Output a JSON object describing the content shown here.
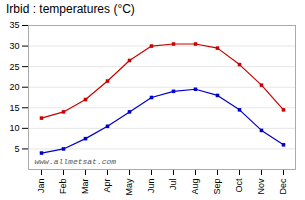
{
  "chart_data": {
    "type": "line",
    "title": "Irbid : temperatures (°C)",
    "categories": [
      "Jan",
      "Feb",
      "Mar",
      "Apr",
      "May",
      "Jun",
      "Jul",
      "Aug",
      "Sep",
      "Oct",
      "Nov",
      "Dec"
    ],
    "series": [
      {
        "color": "#cc0000",
        "marker": "square",
        "values": [
          12.5,
          14.0,
          17.0,
          21.5,
          26.5,
          30.0,
          30.5,
          30.5,
          29.5,
          25.5,
          20.5,
          14.5
        ]
      },
      {
        "color": "#0000cc",
        "marker": "square",
        "values": [
          4.0,
          5.0,
          7.5,
          10.5,
          14.0,
          17.5,
          19.0,
          19.5,
          18.0,
          14.5,
          9.5,
          6.0
        ]
      }
    ],
    "ylim": [
      0,
      35
    ],
    "yticks": [
      5,
      10,
      15,
      20,
      25,
      30,
      35
    ],
    "grid": true,
    "annotations": [
      "www.allmetsat.com"
    ]
  }
}
